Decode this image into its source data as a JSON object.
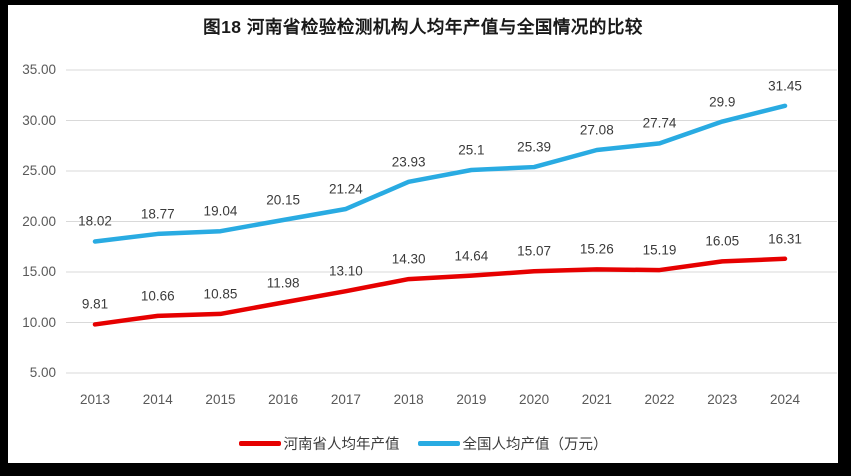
{
  "title": "图18  河南省检验检测机构人均年产值与全国情况的比较",
  "colors": {
    "henan_line": "#e60000",
    "national_line": "#29abe2",
    "gridline": "#d9d9d9",
    "axis_text": "#595959",
    "label_text": "#3b3b3b",
    "frame": "#000000"
  },
  "chart_data": {
    "type": "line",
    "categories": [
      "2013",
      "2014",
      "2015",
      "2016",
      "2017",
      "2018",
      "2019",
      "2020",
      "2021",
      "2022",
      "2023",
      "2024"
    ],
    "series": [
      {
        "name": "河南省人均年产值",
        "color": "#e60000",
        "values": [
          9.81,
          10.66,
          10.85,
          11.98,
          13.1,
          14.3,
          14.64,
          15.07,
          15.26,
          15.19,
          16.05,
          16.31
        ],
        "labels": [
          "9.81",
          "10.66",
          "10.85",
          "11.98",
          "13.10",
          "14.30",
          "14.64",
          "15.07",
          "15.26",
          "15.19",
          "16.05",
          "16.31"
        ]
      },
      {
        "name": "全国人均产值（万元）",
        "color": "#29abe2",
        "values": [
          18.02,
          18.77,
          19.04,
          20.15,
          21.24,
          23.93,
          25.1,
          25.39,
          27.08,
          27.74,
          29.9,
          31.45
        ],
        "labels": [
          "18.02",
          "18.77",
          "19.04",
          "20.15",
          "21.24",
          "23.93",
          "25.1",
          "25.39",
          "27.08",
          "27.74",
          "29.9",
          "31.45"
        ]
      }
    ],
    "title": "图18  河南省检验检测机构人均年产值与全国情况的比较",
    "xlabel": "",
    "ylabel": "",
    "ylim": [
      5,
      35
    ],
    "yticks": [
      "35.00",
      "30.00",
      "25.00",
      "20.00",
      "15.00",
      "10.00",
      "5.00"
    ],
    "grid": true,
    "legend_position": "bottom"
  }
}
